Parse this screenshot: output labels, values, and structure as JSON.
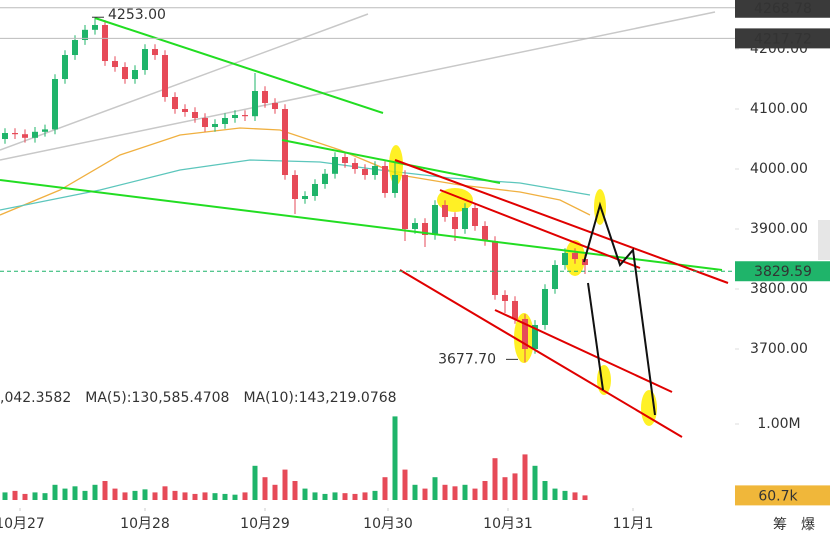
{
  "chart_data": {
    "type": "candlestick",
    "up_color": "#1fb46a",
    "down_color": "#e64a58",
    "open": [
      4050,
      4060,
      4058,
      4052,
      4062,
      4066,
      4150,
      4190,
      4215,
      4232,
      4240,
      4180,
      4170,
      4150,
      4165,
      4200,
      4190,
      4120,
      4100,
      4095,
      4085,
      4070,
      4075,
      4085,
      4090,
      4088,
      4130,
      4110,
      4100,
      3990,
      3950,
      3955,
      3975,
      3992,
      4020,
      4010,
      4000,
      3990,
      4005,
      3960,
      3990,
      3900,
      3910,
      3890,
      3940,
      3920,
      3900,
      3935,
      3905,
      3880,
      3790,
      3780,
      3750,
      3700,
      3740,
      3800,
      3840,
      3860,
      3850
    ],
    "high": [
      4068,
      4068,
      4066,
      4070,
      4074,
      4158,
      4198,
      4223,
      4240,
      4253,
      4248,
      4188,
      4178,
      4173,
      4208,
      4208,
      4198,
      4128,
      4108,
      4103,
      4093,
      4083,
      4093,
      4098,
      4098,
      4160,
      4138,
      4118,
      4108,
      3998,
      3963,
      3983,
      4000,
      4028,
      4028,
      4018,
      4008,
      4013,
      4013,
      4010,
      3998,
      3918,
      3918,
      3948,
      3948,
      3928,
      3943,
      3943,
      3913,
      3888,
      3798,
      3788,
      3758,
      3748,
      3808,
      3848,
      3868,
      3868,
      3858
    ],
    "low": [
      4042,
      4050,
      4044,
      4044,
      4054,
      4058,
      4142,
      4182,
      4207,
      4224,
      4172,
      4162,
      4142,
      4142,
      4157,
      4182,
      4112,
      4092,
      4087,
      4077,
      4062,
      4062,
      4067,
      4077,
      4080,
      4080,
      4102,
      4092,
      3982,
      3925,
      3942,
      3947,
      3967,
      3984,
      4002,
      3992,
      3982,
      3982,
      3952,
      3952,
      3880,
      3892,
      3870,
      3882,
      3912,
      3880,
      3892,
      3897,
      3872,
      3782,
      3760,
      3742,
      3677.7,
      3692,
      3732,
      3792,
      3832,
      3842,
      3825
    ],
    "close": [
      4060,
      4058,
      4052,
      4062,
      4066,
      4150,
      4190,
      4215,
      4232,
      4240,
      4180,
      4170,
      4150,
      4165,
      4200,
      4190,
      4120,
      4100,
      4095,
      4085,
      4070,
      4075,
      4085,
      4090,
      4088,
      4130,
      4110,
      4100,
      3990,
      3950,
      3955,
      3975,
      3992,
      4020,
      4010,
      4000,
      3990,
      4005,
      3960,
      3990,
      3900,
      3910,
      3890,
      3940,
      3920,
      3900,
      3935,
      3905,
      3880,
      3790,
      3780,
      3750,
      3700,
      3740,
      3800,
      3840,
      3860,
      3850,
      3840
    ],
    "volume": [
      0.1,
      0.12,
      0.08,
      0.1,
      0.09,
      0.2,
      0.15,
      0.18,
      0.12,
      0.2,
      0.25,
      0.15,
      0.1,
      0.12,
      0.14,
      0.1,
      0.18,
      0.12,
      0.1,
      0.08,
      0.1,
      0.09,
      0.08,
      0.07,
      0.1,
      0.45,
      0.3,
      0.2,
      0.4,
      0.25,
      0.15,
      0.1,
      0.08,
      0.1,
      0.09,
      0.08,
      0.1,
      0.12,
      0.3,
      1.1,
      0.4,
      0.2,
      0.15,
      0.3,
      0.2,
      0.18,
      0.2,
      0.15,
      0.25,
      0.55,
      0.3,
      0.35,
      0.6,
      0.45,
      0.25,
      0.15,
      0.12,
      0.1,
      0.0607
    ],
    "xlim": [
      -0.5,
      73
    ],
    "xticks": [
      {
        "value": 1.5,
        "label": "10月27"
      },
      {
        "value": 14,
        "label": "10月28"
      },
      {
        "value": 26,
        "label": "10月29"
      },
      {
        "value": 38.3,
        "label": "10月30"
      },
      {
        "value": 50.3,
        "label": "10月31"
      },
      {
        "value": 62.8,
        "label": "11月1"
      }
    ],
    "ylim": [
      3648.3,
      4281.7
    ],
    "yticks": [
      {
        "value": 4200,
        "label": "4200.00"
      },
      {
        "value": 4100,
        "label": "4100.00"
      },
      {
        "value": 4000,
        "label": "4000.00"
      },
      {
        "value": 3900,
        "label": "3900.00"
      },
      {
        "value": 3800,
        "label": "3800.00"
      },
      {
        "value": 3700,
        "label": "3700.00"
      }
    ],
    "volume_ylim": [
      0,
      1.25
    ],
    "volume_yticks": [
      {
        "value": 1,
        "label": "1.00M"
      }
    ],
    "price_tags": [
      {
        "value": 4268.78,
        "color": "#3a3a3a"
      },
      {
        "value": 4217.72,
        "color": "#3a3a3a"
      },
      {
        "value": 3829.59,
        "color": "#1fb46a"
      }
    ],
    "volume_tag": {
      "value": 0.0607,
      "label": "60.7k",
      "color": "#f0b73a"
    },
    "annotations": [
      {
        "value": 4253,
        "label": "4253.00"
      },
      {
        "value": 3677.7,
        "label": "3677.70"
      }
    ],
    "ma_labels": [
      {
        "text": ",042.3582",
        "color": "#555555"
      },
      {
        "text": "MA(5):130,585.4708",
        "color": "#3bb8b0"
      },
      {
        "text": "MA(10):143,219.0768",
        "color": "#f0a818"
      }
    ],
    "footer": [
      "筹",
      "爆"
    ]
  }
}
